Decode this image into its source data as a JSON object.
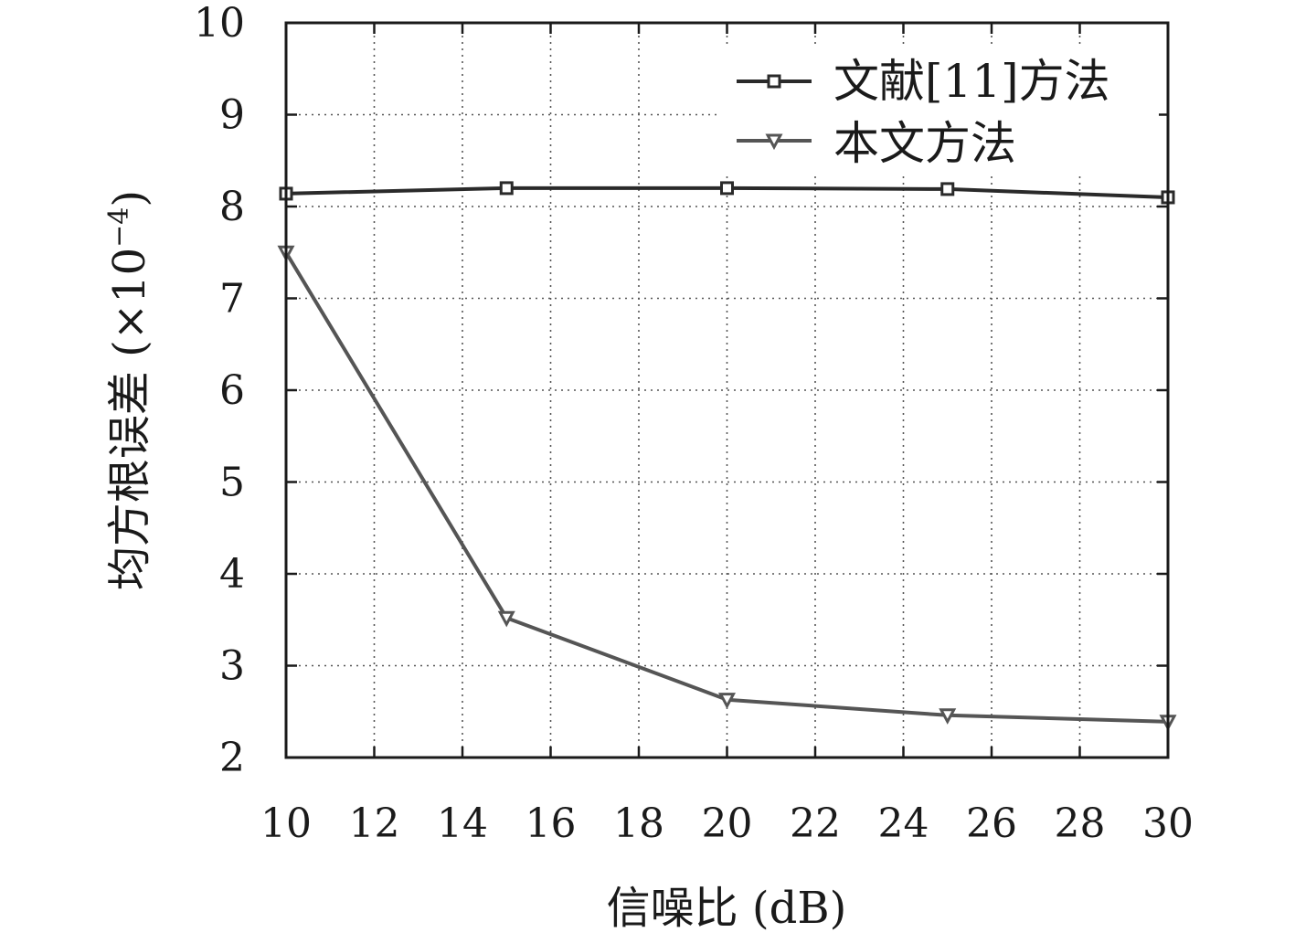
{
  "chart_data": {
    "type": "line",
    "xlabel": "信噪比 (dB)",
    "ylabel": "均方根误差 (×10",
    "ylabel_exp": "−4",
    "ylabel_close": ")",
    "xlim": [
      10,
      30
    ],
    "ylim": [
      2,
      10
    ],
    "xticks": [
      10,
      12,
      14,
      16,
      18,
      20,
      22,
      24,
      26,
      28,
      30
    ],
    "yticks": [
      2,
      3,
      4,
      5,
      6,
      7,
      8,
      9,
      10
    ],
    "grid": true,
    "legend_position": "top-right",
    "x": [
      10,
      15,
      20,
      25,
      30
    ],
    "series": [
      {
        "name": "文献[11]方法",
        "values": [
          8.14,
          8.2,
          8.2,
          8.19,
          8.1
        ],
        "marker": "square",
        "color": "#2a2a2a"
      },
      {
        "name": "本文方法",
        "values": [
          7.5,
          3.52,
          2.63,
          2.46,
          2.39
        ],
        "marker": "triangle-down",
        "color": "#555555"
      }
    ]
  }
}
